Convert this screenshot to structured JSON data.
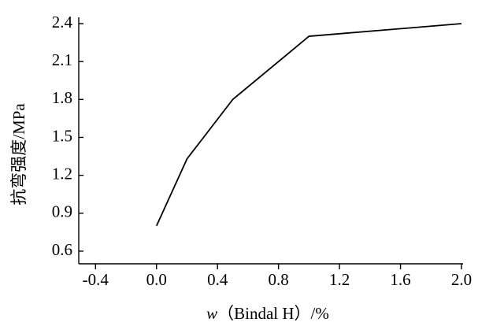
{
  "chart_data": {
    "type": "line",
    "x_label_var": "w",
    "x_label": "（Bindal H）/%",
    "y_label": "抗弯强度/MPa",
    "x": [
      0.0,
      0.2,
      0.5,
      1.0,
      2.0
    ],
    "series": [
      {
        "color": "#000000",
        "values": [
          0.8,
          1.33,
          1.8,
          2.3,
          2.4
        ]
      }
    ],
    "xlim": [
      -0.51,
      2.0
    ],
    "xticks": [
      -0.4,
      {
        "value": 0,
        "label": "0.0"
      },
      0.4,
      0.8,
      1.2,
      1.6,
      {
        "value": 2,
        "label": "2.0"
      }
    ],
    "ylim": [
      0.5,
      2.4
    ],
    "yticks": [
      0.6,
      0.9,
      1.2,
      1.5,
      1.8,
      2.1,
      2.4
    ]
  }
}
